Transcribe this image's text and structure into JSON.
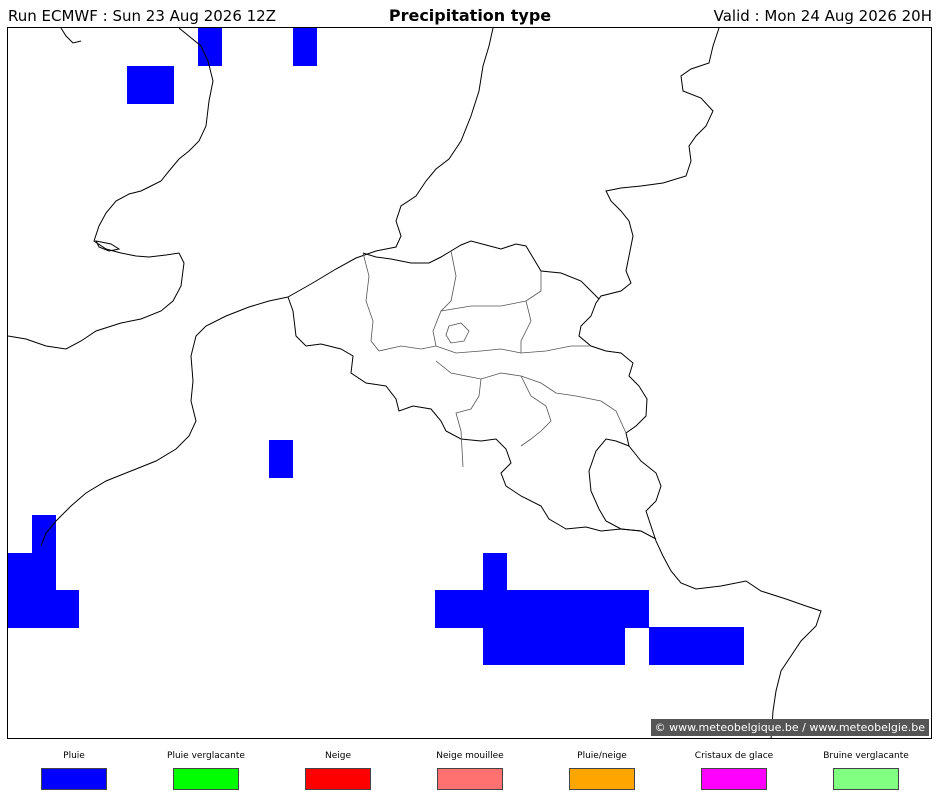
{
  "header": {
    "run": "Run ECMWF : Sun 23 Aug 2026 12Z",
    "title": "Precipitation type",
    "valid": "Valid : Mon 24 Aug 2026 20H"
  },
  "map": {
    "credit": "© www.meteobelgique.be / www.meteobelgie.be",
    "rain_color": "#0000ff",
    "rain_cells_count": 14
  },
  "legend": [
    {
      "label": "Pluie",
      "color": "#0000ff"
    },
    {
      "label": "Pluie verglacante",
      "color": "#00ff00"
    },
    {
      "label": "Neige",
      "color": "#ff0000"
    },
    {
      "label": "Neige mouillee",
      "color": "#ff7070"
    },
    {
      "label": "Pluie/neige",
      "color": "#ffa500"
    },
    {
      "label": "Cristaux de glace",
      "color": "#ff00ff"
    },
    {
      "label": "Bruine verglacante",
      "color": "#80ff80"
    }
  ]
}
